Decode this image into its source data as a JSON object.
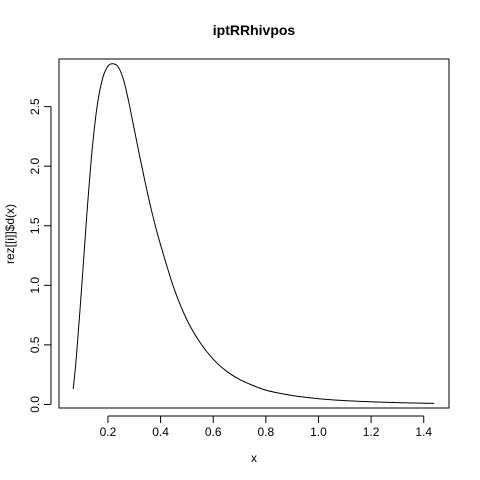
{
  "chart_data": {
    "type": "line",
    "title": "iptRRhivpos",
    "xlabel": "x",
    "ylabel": "rez[[i]]$d(x)",
    "xlim": [
      0.014,
      1.496
    ],
    "ylim": [
      -0.03,
      2.9
    ],
    "x_ticks": [
      0.2,
      0.4,
      0.6,
      0.8,
      1.0,
      1.2,
      1.4
    ],
    "x_tick_labels": [
      "0.2",
      "0.4",
      "0.6",
      "0.8",
      "1.0",
      "1.2",
      "1.4"
    ],
    "y_ticks": [
      0.0,
      0.5,
      1.0,
      1.5,
      2.0,
      2.5
    ],
    "y_tick_labels": [
      "0.0",
      "0.5",
      "1.0",
      "1.5",
      "2.0",
      "2.5"
    ],
    "grid": false,
    "legend": "none",
    "series": [
      {
        "x": [
          0.068,
          0.08,
          0.1,
          0.12,
          0.14,
          0.16,
          0.18,
          0.2,
          0.22,
          0.24,
          0.26,
          0.28,
          0.3,
          0.32,
          0.34,
          0.36,
          0.38,
          0.4,
          0.45,
          0.5,
          0.55,
          0.6,
          0.65,
          0.7,
          0.75,
          0.8,
          0.85,
          0.9,
          0.95,
          1.0,
          1.1,
          1.2,
          1.3,
          1.44
        ],
        "y": [
          0.13,
          0.4,
          0.98,
          1.6,
          2.14,
          2.52,
          2.74,
          2.84,
          2.86,
          2.83,
          2.72,
          2.53,
          2.31,
          2.09,
          1.88,
          1.68,
          1.5,
          1.34,
          0.98,
          0.71,
          0.52,
          0.38,
          0.28,
          0.21,
          0.16,
          0.12,
          0.095,
          0.075,
          0.06,
          0.048,
          0.032,
          0.022,
          0.015,
          0.009
        ]
      }
    ]
  }
}
